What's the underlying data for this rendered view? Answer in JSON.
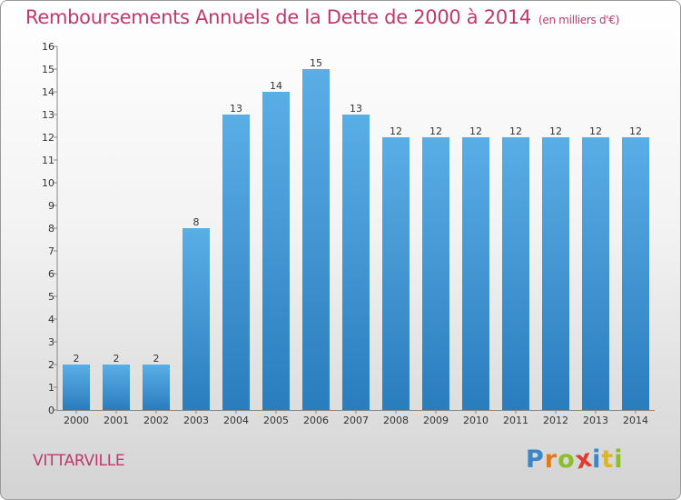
{
  "header": {
    "title": "Remboursements Annuels de la Dette de 2000 à 2014",
    "subtitle": "(en milliers d'€)"
  },
  "footer": {
    "city": "VITTARVILLE",
    "logo_letters": [
      {
        "ch": "P",
        "color": "#3a86c8"
      },
      {
        "ch": "r",
        "color": "#e07a1f"
      },
      {
        "ch": "o",
        "color": "#8cbd2b"
      },
      {
        "ch": "x",
        "color": "#e03a2f"
      },
      {
        "ch": "i",
        "color": "#3a86c8"
      },
      {
        "ch": "t",
        "color": "#e0b51f"
      },
      {
        "ch": "i",
        "color": "#8cbd2b"
      }
    ]
  },
  "colors": {
    "bar_top": "#5aaee6",
    "bar_bottom": "#2a7dbd",
    "title": "#c2386b"
  },
  "chart_data": {
    "type": "bar",
    "title": "Remboursements Annuels de la Dette de 2000 à 2014",
    "subtitle": "(en milliers d'€)",
    "categories": [
      "2000",
      "2001",
      "2002",
      "2003",
      "2004",
      "2005",
      "2006",
      "2007",
      "2008",
      "2009",
      "2010",
      "2011",
      "2012",
      "2013",
      "2014"
    ],
    "values": [
      2,
      2,
      2,
      8,
      13,
      14,
      15,
      13,
      12,
      12,
      12,
      12,
      12,
      12,
      12
    ],
    "ylim": [
      0,
      16
    ],
    "yticks": [
      0,
      1,
      2,
      3,
      4,
      5,
      6,
      7,
      8,
      9,
      10,
      11,
      12,
      13,
      14,
      15,
      16
    ],
    "grid": false,
    "data_labels": true
  }
}
